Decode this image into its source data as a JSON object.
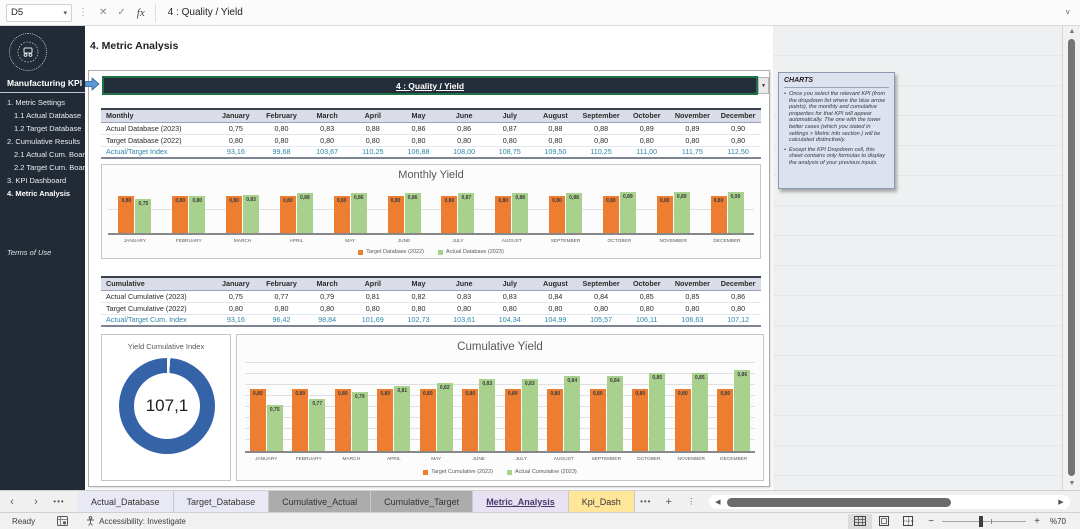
{
  "colors": {
    "sidebar_bg": "#222B35",
    "index_accent": "#2E86A8",
    "target_orange": "#ED7D31",
    "actual_green": "#A9D18E",
    "donut_blue": "#3563A8",
    "selection_green": "#1E7145",
    "arrow_blue": "#4472C4"
  },
  "formula_bar": {
    "name_box": "D5",
    "formula": "4 : Quality / Yield"
  },
  "sidebar": {
    "title": "Manufacturing KPI",
    "items": [
      {
        "label": "1. Metric Settings",
        "indent": 0,
        "active": false
      },
      {
        "label": "1.1 Actual Database",
        "indent": 1,
        "active": false
      },
      {
        "label": "1.2 Target Database",
        "indent": 1,
        "active": false
      },
      {
        "label": "2. Cumulative Results",
        "indent": 0,
        "active": false
      },
      {
        "label": "2.1 Actual Cum. Board",
        "indent": 1,
        "active": false
      },
      {
        "label": "2.2 Target Cum. Board",
        "indent": 1,
        "active": false
      },
      {
        "label": "3. KPI Dashboard",
        "indent": 0,
        "active": false
      },
      {
        "label": "4. Metric Analysis",
        "indent": 0,
        "active": true
      }
    ],
    "footer": "Terms of Use"
  },
  "months": [
    "January",
    "February",
    "March",
    "April",
    "May",
    "June",
    "July",
    "August",
    "September",
    "October",
    "November",
    "December"
  ],
  "sheet": {
    "heading": "4. Metric Analysis",
    "kpi_dropdown_value": "4 : Quality / Yield"
  },
  "monthly_table": {
    "corner": "Monthly",
    "rows": [
      {
        "label": "Actual Database (2023)",
        "accent": false,
        "values": [
          "0,75",
          "0,80",
          "0,83",
          "0,88",
          "0,86",
          "0,86",
          "0,87",
          "0,88",
          "0,88",
          "0,89",
          "0,89",
          "0,90"
        ]
      },
      {
        "label": "Target Database (2022)",
        "accent": false,
        "values": [
          "0,80",
          "0,80",
          "0,80",
          "0,80",
          "0,80",
          "0,80",
          "0,80",
          "0,80",
          "0,80",
          "0,80",
          "0,80",
          "0,80"
        ]
      },
      {
        "label": "Actual/Target Index",
        "accent": true,
        "values": [
          "93,16",
          "99,68",
          "103,67",
          "110,25",
          "106,88",
          "108,00",
          "108,75",
          "109,50",
          "110,25",
          "111,00",
          "111,75",
          "112,50"
        ]
      }
    ]
  },
  "cumulative_table": {
    "corner": "Cumulative",
    "rows": [
      {
        "label": "Actual Cumulative (2023)",
        "accent": false,
        "values": [
          "0,75",
          "0,77",
          "0,79",
          "0,81",
          "0,82",
          "0,83",
          "0,83",
          "0,84",
          "0,84",
          "0,85",
          "0,85",
          "0,86"
        ]
      },
      {
        "label": "Target Cumulative (2022)",
        "accent": false,
        "values": [
          "0,80",
          "0,80",
          "0,80",
          "0,80",
          "0,80",
          "0,80",
          "0,80",
          "0,80",
          "0,80",
          "0,80",
          "0,80",
          "0,80"
        ]
      },
      {
        "label": "Actual/Target Cum. Index",
        "accent": true,
        "values": [
          "93,16",
          "96,42",
          "98,84",
          "101,69",
          "102,73",
          "103,61",
          "104,34",
          "104,99",
          "105,57",
          "106,11",
          "106,63",
          "107,12"
        ]
      }
    ]
  },
  "charts_note": {
    "title": "CHARTS",
    "bullets": [
      "Once you select the relevant KPI (from the dropdown list where the blue arrow points), the monthly and cumulative properties for that KPI will appear automatically. The one with the lower better cases (which you stated in settings > Metric info section ) will be calculated distinctively.",
      "Except the KPI Dropdown cell, this sheet contains only formulas to display the analysis of your previous inputs."
    ]
  },
  "chart_data": [
    {
      "type": "bar",
      "title": "Monthly Yield",
      "categories": [
        "JANUARY",
        "FEBRUARY",
        "MARCH",
        "APRIL",
        "MAY",
        "JUNE",
        "JULY",
        "AUGUST",
        "SEPTEMBER",
        "OCTOBER",
        "NOVEMBER",
        "DECEMBER"
      ],
      "series": [
        {
          "name": "Target Database (2022)",
          "color": "#ED7D31",
          "values": [
            0.8,
            0.8,
            0.8,
            0.8,
            0.8,
            0.8,
            0.8,
            0.8,
            0.8,
            0.8,
            0.8,
            0.8
          ]
        },
        {
          "name": "Actual Database (2023)",
          "color": "#A9D18E",
          "values": [
            0.75,
            0.8,
            0.83,
            0.88,
            0.86,
            0.86,
            0.87,
            0.88,
            0.88,
            0.89,
            0.89,
            0.9
          ]
        }
      ],
      "ylim": [
        0,
        1.0
      ],
      "gridlines": [
        0.5
      ],
      "legend_position": "bottom",
      "data_labels": true
    },
    {
      "type": "donut",
      "title": "Yield Cumulative Index",
      "value": 107.1,
      "display_value": "107,1",
      "color": "#3563A8"
    },
    {
      "type": "bar",
      "title": "Cumulative Yield",
      "categories": [
        "JANUARY",
        "FEBRUARY",
        "MARCH",
        "APRIL",
        "MAY",
        "JUNE",
        "JULY",
        "AUGUST",
        "SEPTEMBER",
        "OCTOBER",
        "NOVEMBER",
        "DECEMBER"
      ],
      "series": [
        {
          "name": "Target Cumulative (2022)",
          "color": "#ED7D31",
          "values": [
            0.8,
            0.8,
            0.8,
            0.8,
            0.8,
            0.8,
            0.8,
            0.8,
            0.8,
            0.8,
            0.8,
            0.8
          ]
        },
        {
          "name": "Actual Cumulative (2023)",
          "color": "#A9D18E",
          "values": [
            0.75,
            0.77,
            0.79,
            0.81,
            0.82,
            0.83,
            0.83,
            0.84,
            0.84,
            0.85,
            0.85,
            0.86
          ]
        }
      ],
      "ylim": [
        0.61,
        0.88
      ],
      "grid_count": 8,
      "legend_position": "bottom",
      "data_labels": true
    }
  ],
  "tab_strip": {
    "tabs": [
      {
        "label": "Actual_Database",
        "bg": "#E9E9F5",
        "active": false
      },
      {
        "label": "Target_Database",
        "bg": "#E9E9F5",
        "active": false
      },
      {
        "label": "Cumulative_Actual",
        "bg": "#ACACAC",
        "active": false
      },
      {
        "label": "Cumulative_Target",
        "bg": "#ACACAC",
        "active": false
      },
      {
        "label": "Metric_Analysis",
        "bg": "#E8E1F2",
        "active": true
      },
      {
        "label": "Kpi_Dash",
        "bg": "#FFE699",
        "active": false
      }
    ]
  },
  "status_bar": {
    "ready": "Ready",
    "accessibility": "Accessibility: Investigate",
    "zoom": "%70"
  }
}
